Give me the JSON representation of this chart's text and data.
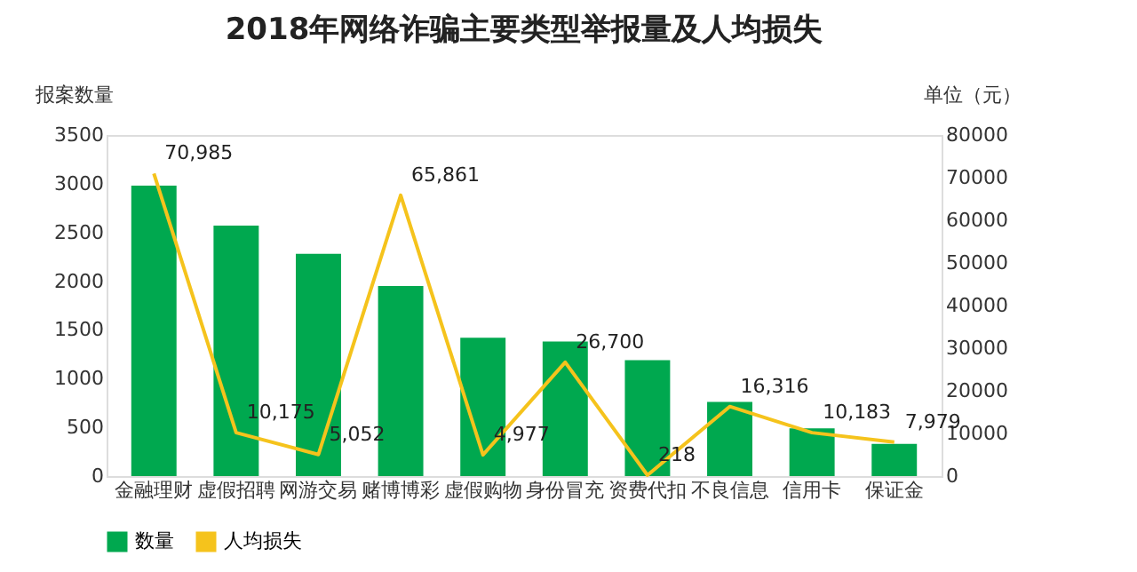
{
  "chart_data": {
    "type": "bar",
    "title": "2018年网络诈骗主要类型举报量及人均损失",
    "ylabel": "报案数量",
    "y2label": "单位（元）",
    "categories": [
      "金融理财",
      "虚假招聘",
      "网游交易",
      "赌博博彩",
      "虚假购物",
      "身份冒充",
      "资费代扣",
      "不良信息",
      "信用卡",
      "保证金"
    ],
    "series": [
      {
        "name": "数量",
        "color": "#00a84f",
        "values": [
          2980,
          2570,
          2280,
          1950,
          1420,
          1380,
          1190,
          760,
          490,
          330
        ]
      },
      {
        "name": "人均损失",
        "type": "line",
        "axis": "y2",
        "color": "#f5c31c",
        "values": [
          70985,
          10175,
          5052,
          65861,
          4977,
          26700,
          218,
          16316,
          10183,
          7979
        ],
        "value_labels": [
          "70,985",
          "10,175",
          "5,052",
          "65,861",
          "4,977",
          "26,700",
          "218",
          "16,316",
          "10,183",
          "7,979"
        ]
      }
    ],
    "ylim": [
      0,
      3500
    ],
    "yticks": [
      0,
      500,
      1000,
      1500,
      2000,
      2500,
      3000,
      3500
    ],
    "y2lim": [
      0,
      80000
    ],
    "y2ticks": [
      0,
      10000,
      20000,
      30000,
      40000,
      50000,
      60000,
      70000,
      80000
    ],
    "legend": "bottom",
    "grid": false
  }
}
